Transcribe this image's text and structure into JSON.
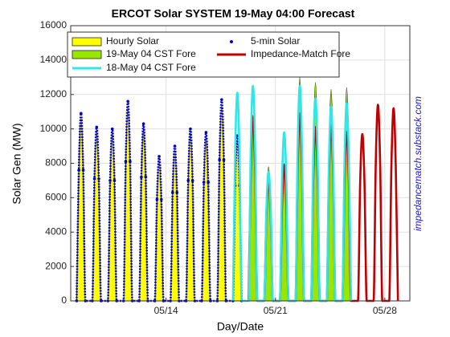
{
  "chart_data": {
    "type": "line",
    "title": "ERCOT Solar SYSTEM  19-May 04:00 Forecast",
    "xlabel": "Day/Date",
    "ylabel": "Solar Gen (MW)",
    "annotation": "impedancematch.substack.com",
    "xlim": [
      7.9,
      29.6
    ],
    "ylim": [
      0,
      16000
    ],
    "xticks": [
      {
        "value": 14,
        "label": "05/14"
      },
      {
        "value": 21,
        "label": "05/21"
      },
      {
        "value": 28,
        "label": "05/28"
      }
    ],
    "yticks": [
      0,
      2000,
      4000,
      6000,
      8000,
      10000,
      12000,
      14000,
      16000
    ],
    "grid": true,
    "legend": "upper left",
    "series": [
      {
        "name": "Hourly Solar",
        "color": "#ffff00",
        "mark": "area",
        "x": [
          8.28,
          8.42,
          8.56,
          8.7,
          8.84,
          9.28,
          9.42,
          9.56,
          9.7,
          9.84,
          10.28,
          10.42,
          10.56,
          10.7,
          10.84,
          11.28,
          11.42,
          11.56,
          11.7,
          11.84,
          12.28,
          12.42,
          12.56,
          12.7,
          12.84,
          13.28,
          13.42,
          13.56,
          13.7,
          13.84,
          14.28,
          14.42,
          14.56,
          14.7,
          14.84,
          15.28,
          15.42,
          15.56,
          15.7,
          15.84,
          16.28,
          16.42,
          16.56,
          16.7,
          16.84,
          17.28,
          17.42,
          17.56,
          17.7,
          17.84,
          18.28,
          18.42,
          18.56,
          18.7,
          18.84
        ],
        "values": [
          0,
          7500,
          10700,
          7500,
          0,
          0,
          6900,
          9900,
          6900,
          0,
          0,
          6900,
          9800,
          6900,
          0,
          0,
          7900,
          11300,
          7900,
          0,
          0,
          7100,
          10100,
          7100,
          0,
          0,
          5700,
          8200,
          5700,
          0,
          0,
          6200,
          8800,
          6200,
          0,
          0,
          6900,
          9800,
          6900,
          0,
          0,
          6700,
          9600,
          6700,
          0,
          0,
          8000,
          11400,
          8000,
          0,
          0,
          6600,
          9400,
          6600,
          0
        ]
      },
      {
        "name": "5-min Solar",
        "color": "#0000cc",
        "mark": "dots",
        "x": [
          8.28,
          8.42,
          8.56,
          8.7,
          8.84,
          9.28,
          9.42,
          9.56,
          9.7,
          9.84,
          10.28,
          10.42,
          10.56,
          10.7,
          10.84,
          11.28,
          11.42,
          11.56,
          11.7,
          11.84,
          12.28,
          12.42,
          12.56,
          12.7,
          12.84,
          13.28,
          13.42,
          13.56,
          13.7,
          13.84,
          14.28,
          14.42,
          14.56,
          14.7,
          14.84,
          15.28,
          15.42,
          15.56,
          15.7,
          15.84,
          16.28,
          16.42,
          16.56,
          16.7,
          16.84,
          17.28,
          17.42,
          17.56,
          17.7,
          17.84,
          18.28,
          18.42,
          18.56,
          18.7,
          18.84
        ],
        "values": [
          0,
          7600,
          10900,
          7600,
          0,
          0,
          7100,
          10100,
          7100,
          0,
          0,
          7000,
          10000,
          7000,
          0,
          0,
          8100,
          11600,
          8100,
          0,
          0,
          7200,
          10300,
          7200,
          0,
          0,
          5900,
          8400,
          5900,
          0,
          0,
          6300,
          9000,
          6300,
          0,
          0,
          7000,
          10000,
          7000,
          0,
          0,
          6900,
          9800,
          6900,
          0,
          0,
          8200,
          11700,
          8200,
          0,
          0,
          6700,
          9600,
          6700,
          0
        ]
      },
      {
        "name": "19-May 04 CST Fore",
        "color": "#99e600",
        "mark": "area",
        "x": [
          19.28,
          19.42,
          19.56,
          19.7,
          19.84,
          20.28,
          20.42,
          20.56,
          20.7,
          20.84,
          21.28,
          21.42,
          21.56,
          21.7,
          21.84,
          22.28,
          22.42,
          22.56,
          22.7,
          22.84,
          23.28,
          23.42,
          23.56,
          23.7,
          23.84,
          24.28,
          24.42,
          24.56,
          24.7,
          24.84,
          25.28,
          25.42,
          25.56,
          25.7,
          25.84
        ],
        "values": [
          0,
          7600,
          10800,
          7600,
          0,
          0,
          5500,
          7800,
          5500,
          0,
          0,
          5600,
          8000,
          5600,
          0,
          0,
          9100,
          13000,
          9100,
          0,
          0,
          8900,
          12700,
          8900,
          0,
          0,
          8600,
          12300,
          8600,
          0,
          0,
          8700,
          12400,
          8700,
          0
        ]
      },
      {
        "name": "Impedance-Match Fore",
        "color": "#c00000",
        "mark": "line",
        "x": [
          19.28,
          19.42,
          19.56,
          19.7,
          19.84,
          20.28,
          20.42,
          20.56,
          20.7,
          20.84,
          21.28,
          21.42,
          21.56,
          21.7,
          21.84,
          22.28,
          22.42,
          22.56,
          22.7,
          22.84,
          23.28,
          23.42,
          23.56,
          23.7,
          23.84,
          24.28,
          24.42,
          24.56,
          24.7,
          24.84,
          25.28,
          25.42,
          25.56,
          25.7,
          25.84,
          26.28,
          26.42,
          26.56,
          26.7,
          26.84,
          27.28,
          27.42,
          27.56,
          27.7,
          27.84,
          28.28,
          28.42,
          28.56,
          28.7,
          28.84
        ],
        "values": [
          0,
          7500,
          10700,
          7500,
          0,
          0,
          4900,
          7000,
          4900,
          0,
          0,
          5500,
          7900,
          5500,
          0,
          0,
          7600,
          10900,
          7600,
          0,
          0,
          7100,
          10100,
          7100,
          0,
          0,
          7100,
          10200,
          7100,
          0,
          0,
          6900,
          9800,
          6900,
          0,
          0,
          6800,
          9700,
          6800,
          0,
          0,
          8000,
          11400,
          8000,
          0,
          0,
          7800,
          11200,
          7800,
          0
        ]
      },
      {
        "name": "18-May 04 CST Fore",
        "color": "#33e6e6",
        "mark": "line",
        "x": [
          18.28,
          18.42,
          18.56,
          18.7,
          18.84,
          19.28,
          19.42,
          19.56,
          19.7,
          19.84,
          20.28,
          20.42,
          20.56,
          20.7,
          20.84,
          21.28,
          21.42,
          21.56,
          21.7,
          21.84,
          22.28,
          22.42,
          22.56,
          22.7,
          22.84,
          23.28,
          23.42,
          23.56,
          23.7,
          23.84,
          24.28,
          24.42,
          24.56,
          24.7,
          24.84,
          25.28,
          25.42,
          25.56,
          25.7,
          25.84
        ],
        "values": [
          0,
          8500,
          12100,
          8500,
          0,
          0,
          8800,
          12500,
          8800,
          0,
          0,
          5300,
          7500,
          5300,
          0,
          0,
          6900,
          9800,
          6900,
          0,
          0,
          8800,
          12500,
          8800,
          0,
          0,
          8300,
          11800,
          8300,
          0,
          0,
          7900,
          11300,
          7900,
          0,
          0,
          8100,
          11500,
          8100,
          0
        ]
      }
    ]
  }
}
